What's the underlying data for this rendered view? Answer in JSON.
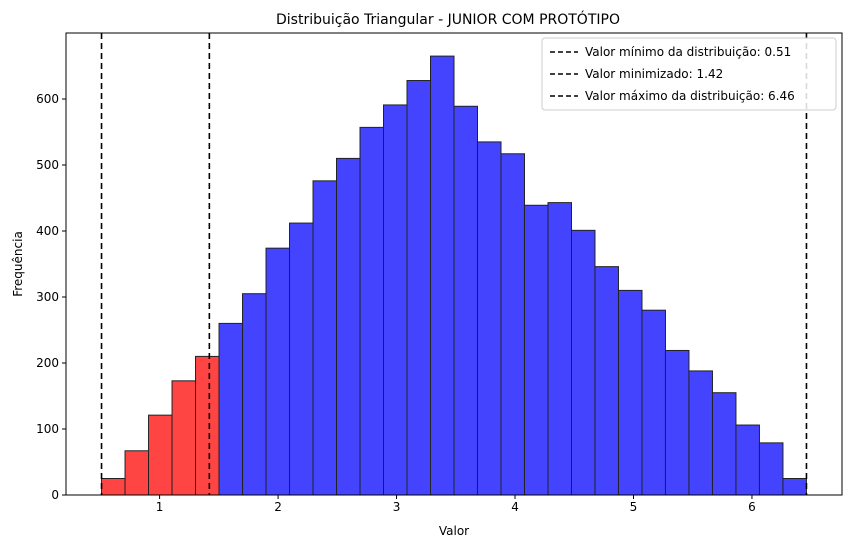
{
  "chart_data": {
    "type": "bar",
    "title": "Distribuição Triangular - JUNIOR COM PROTÓTIPO",
    "xlabel": "Valor",
    "ylabel": "Frequência",
    "xlim": [
      0.21,
      6.76
    ],
    "ylim": [
      0,
      700
    ],
    "xticks": [
      1,
      2,
      3,
      4,
      5,
      6
    ],
    "yticks": [
      0,
      100,
      200,
      300,
      400,
      500,
      600
    ],
    "grid": false,
    "legend_position": "top-right",
    "bin_edges": [
      0.51,
      0.7083,
      0.9067,
      1.105,
      1.3033,
      1.5017,
      1.7,
      1.8983,
      2.0967,
      2.295,
      2.4933,
      2.6917,
      2.89,
      3.0883,
      3.2867,
      3.485,
      3.6833,
      3.8817,
      4.08,
      4.2783,
      4.4767,
      4.675,
      4.8733,
      5.0717,
      5.27,
      5.4683,
      5.6667,
      5.865,
      6.0633,
      6.2617,
      6.46
    ],
    "counts": [
      25,
      67,
      121,
      173,
      210,
      260,
      305,
      374,
      412,
      476,
      510,
      557,
      591,
      628,
      665,
      589,
      535,
      517,
      439,
      443,
      401,
      346,
      310,
      280,
      219,
      188,
      155,
      106,
      79,
      25
    ],
    "highlight_threshold": 1.42,
    "colors": {
      "below_threshold": "#ff4444",
      "above_threshold": "#4444ff",
      "edge": "#222222",
      "vline": "#000000"
    },
    "vlines": [
      {
        "x": 0.51,
        "label": "Valor mínimo da distribuição: 0.51"
      },
      {
        "x": 1.42,
        "label": "Valor minimizado: 1.42"
      },
      {
        "x": 6.46,
        "label": "Valor máximo da distribuição: 6.46"
      }
    ]
  }
}
